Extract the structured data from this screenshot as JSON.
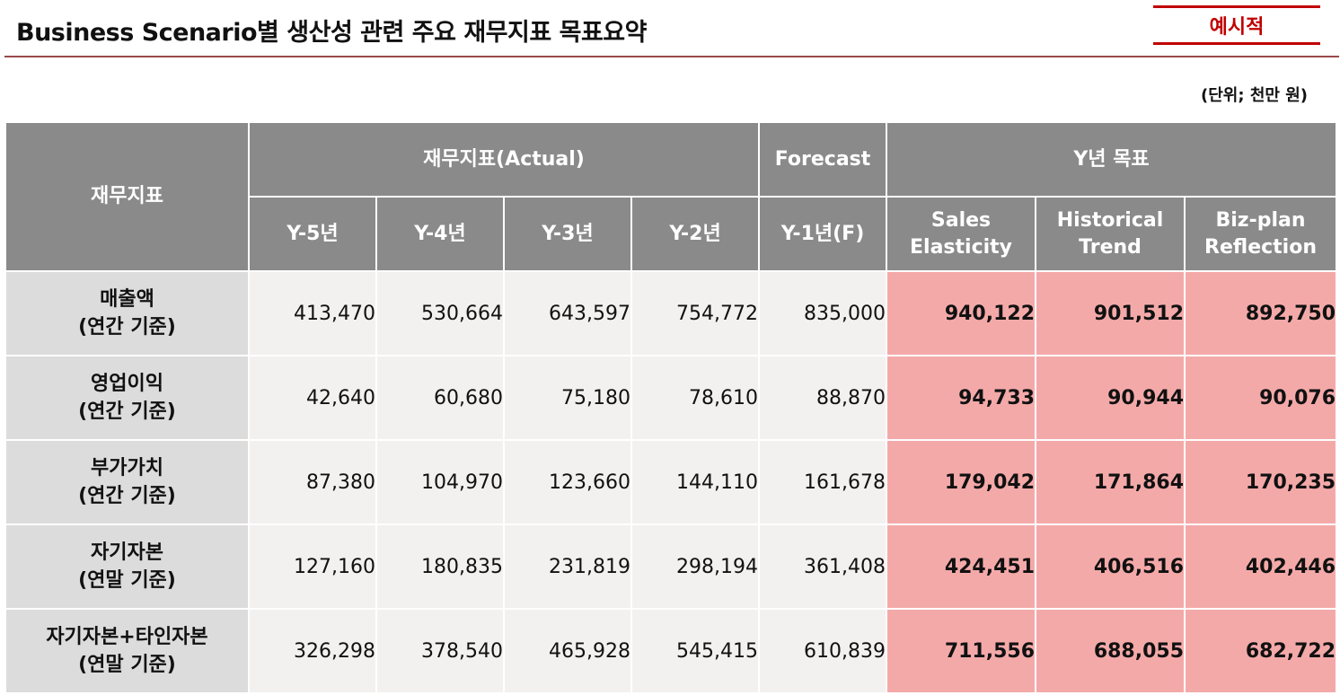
{
  "header": {
    "title": "Business Scenario별 생산성 관련 주요 재무지표 목표요약",
    "badge": "예시적",
    "unit": "(단위; 천만 원)"
  },
  "table": {
    "row_header": "재무지표",
    "groups": {
      "actual": "재무지표(Actual)",
      "forecast": "Forecast",
      "target": "Y년 목표"
    },
    "columns": [
      {
        "line1": "Y-5년",
        "line2": ""
      },
      {
        "line1": "Y-4년",
        "line2": ""
      },
      {
        "line1": "Y-3년",
        "line2": ""
      },
      {
        "line1": "Y-2년",
        "line2": ""
      },
      {
        "line1": "Y-1년(F)",
        "line2": ""
      },
      {
        "line1": "Sales",
        "line2": "Elasticity"
      },
      {
        "line1": "Historical",
        "line2": "Trend"
      },
      {
        "line1": "Biz-plan",
        "line2": "Reflection"
      }
    ],
    "rows": [
      {
        "name": "매출액",
        "basis": "(연간 기준)",
        "values": [
          "413,470",
          "530,664",
          "643,597",
          "754,772",
          "835,000",
          "940,122",
          "901,512",
          "892,750"
        ]
      },
      {
        "name": "영업이익",
        "basis": "(연간 기준)",
        "values": [
          "42,640",
          "60,680",
          "75,180",
          "78,610",
          "88,870",
          "94,733",
          "90,944",
          "90,076"
        ]
      },
      {
        "name": "부가가치",
        "basis": "(연간 기준)",
        "values": [
          "87,380",
          "104,970",
          "123,660",
          "144,110",
          "161,678",
          "179,042",
          "171,864",
          "170,235"
        ]
      },
      {
        "name": "자기자본",
        "basis": "(연말 기준)",
        "values": [
          "127,160",
          "180,835",
          "231,819",
          "298,194",
          "361,408",
          "424,451",
          "406,516",
          "402,446"
        ]
      },
      {
        "name": "자기자본+타인자본",
        "basis": "(연말 기준)",
        "values": [
          "326,298",
          "378,540",
          "465,928",
          "545,415",
          "610,839",
          "711,556",
          "688,055",
          "682,722"
        ]
      }
    ]
  },
  "colors": {
    "header_bg": "#8a8a8a",
    "label_bg": "#dcdcdc",
    "target_bg": "#f4a9a9",
    "accent": "#c00000"
  }
}
